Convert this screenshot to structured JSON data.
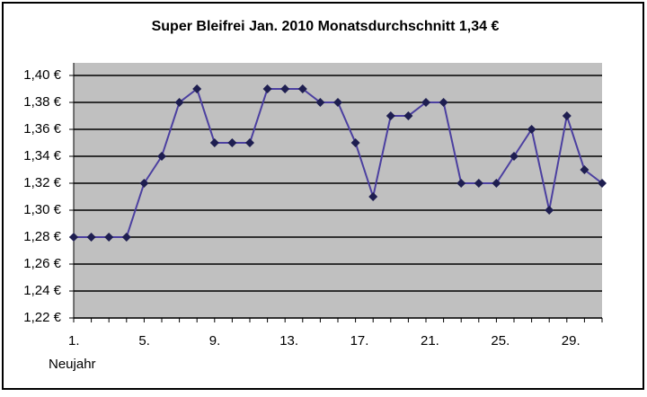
{
  "chart_data": {
    "type": "line",
    "title": "Super Bleifrei Jan. 2010 Monatsdurchschnitt 1,34 €",
    "categories": [
      "1.",
      null,
      null,
      null,
      "5.",
      null,
      null,
      null,
      "9.",
      null,
      null,
      null,
      "13.",
      null,
      null,
      null,
      "17.",
      null,
      null,
      null,
      "21.",
      null,
      null,
      null,
      "25.",
      null,
      null,
      null,
      "29.",
      null,
      null
    ],
    "annotation": "Neujahr",
    "series": [
      {
        "color": "#4b3fa0",
        "marker_color": "#1e1e50",
        "values": [
          1.28,
          1.28,
          1.28,
          1.28,
          1.32,
          1.34,
          1.38,
          1.39,
          1.35,
          1.35,
          1.35,
          1.39,
          1.39,
          1.39,
          1.38,
          1.38,
          1.35,
          1.31,
          1.37,
          1.37,
          1.38,
          1.38,
          1.32,
          1.32,
          1.32,
          1.34,
          1.36,
          1.3,
          1.37,
          1.33,
          1.32
        ]
      }
    ],
    "ylim": [
      1.22,
      1.4
    ],
    "yticks": [
      {
        "value": 1.22,
        "label": "1,22 €"
      },
      {
        "value": 1.24,
        "label": "1,24 €"
      },
      {
        "value": 1.26,
        "label": "1,26 €"
      },
      {
        "value": 1.28,
        "label": "1,28 €"
      },
      {
        "value": 1.3,
        "label": "1,30 €"
      },
      {
        "value": 1.32,
        "label": "1,32 €"
      },
      {
        "value": 1.34,
        "label": "1,34 €"
      },
      {
        "value": 1.36,
        "label": "1,36 €"
      },
      {
        "value": 1.38,
        "label": "1,38 €"
      },
      {
        "value": 1.4,
        "label": "1,40 €"
      }
    ],
    "grid": true
  }
}
